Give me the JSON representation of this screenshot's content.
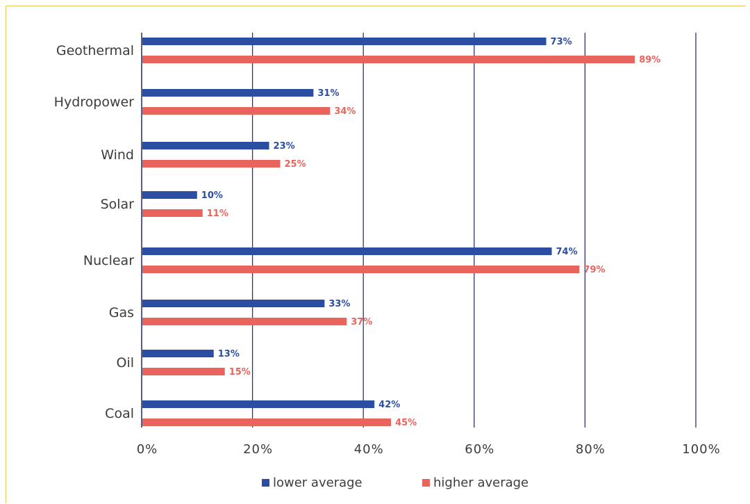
{
  "chart_data": {
    "type": "bar",
    "orientation": "horizontal",
    "categories": [
      "Geothermal",
      "Hydropower",
      "Wind",
      "Solar",
      "Nuclear",
      "Gas",
      "Oil",
      "Coal"
    ],
    "series": [
      {
        "name": "lower average",
        "color": "#2b4ea2",
        "values": [
          73,
          31,
          23,
          10,
          74,
          33,
          13,
          42
        ]
      },
      {
        "name": "higher average",
        "color": "#e8645c",
        "values": [
          89,
          34,
          25,
          11,
          79,
          37,
          15,
          45
        ]
      }
    ],
    "value_suffix": "%",
    "x_ticks": [
      "0%",
      "20%",
      "40%",
      "60%",
      "80%",
      "100%"
    ],
    "xlim": [
      0,
      100
    ],
    "grid": true,
    "grid_color": "#2e3566",
    "legend_position": "bottom",
    "title": "",
    "xlabel": "",
    "ylabel": ""
  }
}
